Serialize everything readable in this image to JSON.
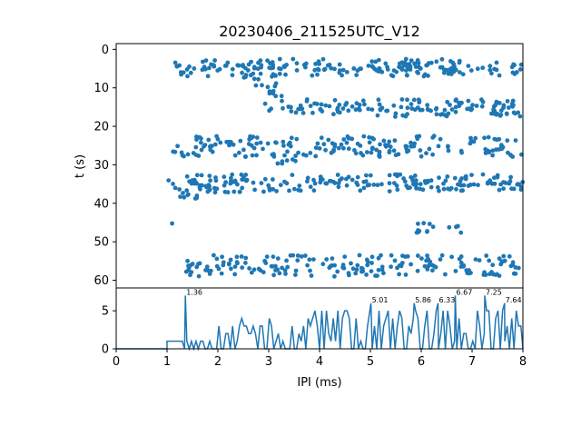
{
  "chart_data": [
    {
      "type": "scatter",
      "title": "20230406_211525UTC_V12",
      "xlabel": "",
      "ylabel": "t (s)",
      "xlim": [
        0,
        8
      ],
      "ylim": [
        62,
        -1.5
      ],
      "y_inverted": true,
      "yticks": [
        0,
        10,
        20,
        30,
        40,
        50,
        60
      ],
      "color": "#1f77b4",
      "description_bands": [
        {
          "t": 4,
          "x_from": 1.1,
          "x_to": 8.0
        },
        {
          "t": 5.5,
          "x_from": 1.1,
          "x_to": 8.0
        },
        {
          "t": 8,
          "x_from": 2.5,
          "x_to": 3.2
        },
        {
          "t": 11,
          "x_from": 2.8,
          "x_to": 3.4
        },
        {
          "t": 14.5,
          "x_from": 2.9,
          "x_to": 8.0
        },
        {
          "t": 16,
          "x_from": 3.0,
          "x_to": 8.0
        },
        {
          "t": 24,
          "x_from": 1.5,
          "x_to": 8.0
        },
        {
          "t": 26.5,
          "x_from": 1.1,
          "x_to": 8.0
        },
        {
          "t": 29,
          "x_from": 3.0,
          "x_to": 3.6
        },
        {
          "t": 34,
          "x_from": 1.3,
          "x_to": 8.0
        },
        {
          "t": 35.5,
          "x_from": 1.0,
          "x_to": 8.0
        },
        {
          "t": 37.5,
          "x_from": 1.0,
          "x_to": 2.5
        },
        {
          "t": 46.5,
          "x_from": 5.8,
          "x_to": 6.8
        },
        {
          "t": 46,
          "x_from": 1.1,
          "x_to": 1.1
        },
        {
          "t": 55,
          "x_from": 1.2,
          "x_to": 8.0
        },
        {
          "t": 57.5,
          "x_from": 1.3,
          "x_to": 8.0
        }
      ]
    },
    {
      "type": "line",
      "xlabel": "IPI (ms)",
      "ylabel": "",
      "xlim": [
        0,
        8
      ],
      "ylim": [
        0,
        8
      ],
      "xticks": [
        0,
        1,
        2,
        3,
        4,
        5,
        6,
        7,
        8
      ],
      "yticks": [
        0,
        5
      ],
      "color": "#1f77b4",
      "peaks": [
        {
          "x": 1.36,
          "y": 7,
          "label": "1.36"
        },
        {
          "x": 5.01,
          "y": 6,
          "label": "5.01"
        },
        {
          "x": 5.86,
          "y": 6,
          "label": "5.86"
        },
        {
          "x": 6.33,
          "y": 6,
          "label": "6.33"
        },
        {
          "x": 6.67,
          "y": 7,
          "label": "6.67"
        },
        {
          "x": 7.25,
          "y": 7,
          "label": "7.25"
        },
        {
          "x": 7.64,
          "y": 6,
          "label": "7.64"
        }
      ]
    }
  ]
}
